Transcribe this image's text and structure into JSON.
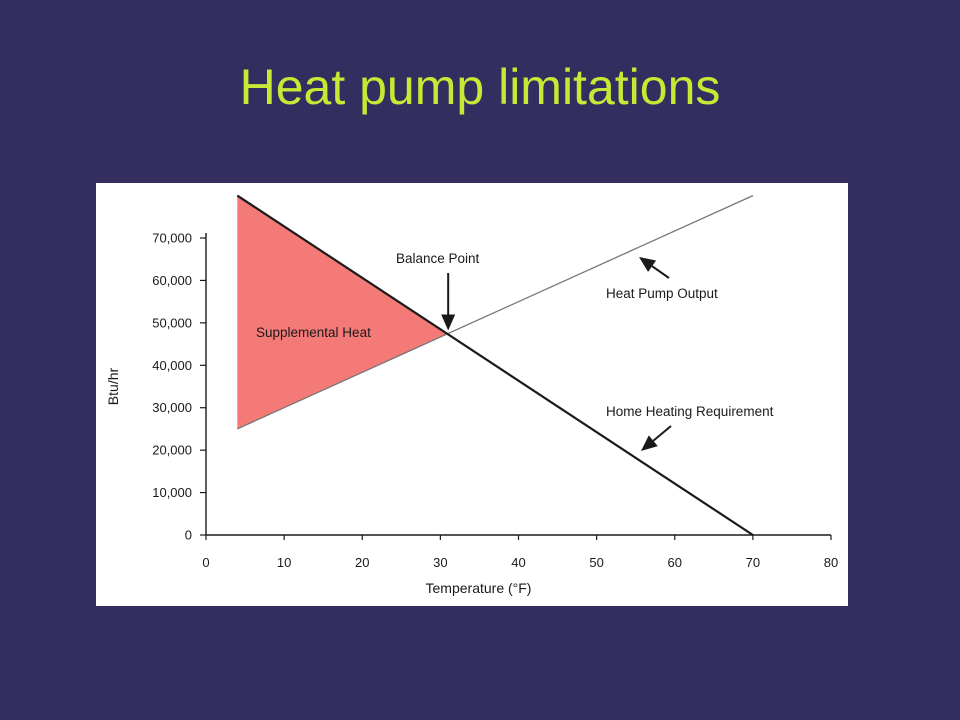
{
  "slide": {
    "title": "Heat pump limitations"
  },
  "colors": {
    "background": "#332e5f",
    "title": "#c7e834",
    "chart_background": "#ffffff",
    "supplemental_fill": "#f47a78",
    "lines": "#1a1a1a"
  },
  "chart_data": {
    "type": "line",
    "title": "",
    "xlabel": "Temperature (°F)",
    "ylabel": "Btu/hr",
    "xlim": [
      0,
      80
    ],
    "ylim": [
      0,
      70000
    ],
    "xticks": [
      0,
      10,
      20,
      30,
      40,
      50,
      60,
      70,
      80
    ],
    "yticks": [
      0,
      10000,
      20000,
      30000,
      40000,
      50000,
      60000,
      70000
    ],
    "xtick_labels": [
      "0",
      "10",
      "20",
      "30",
      "40",
      "50",
      "60",
      "70",
      "80"
    ],
    "ytick_labels": [
      "0",
      "10,000",
      "20,000",
      "30,000",
      "40,000",
      "50,000",
      "60,000",
      "70,000"
    ],
    "grid": false,
    "series": [
      {
        "name": "Heat Pump Output",
        "x": [
          4,
          70
        ],
        "y": [
          25000,
          80000
        ]
      },
      {
        "name": "Home Heating Requirement",
        "x": [
          4,
          70
        ],
        "y": [
          80000,
          0
        ]
      }
    ],
    "balance_point": {
      "x": 31,
      "y": 47500
    },
    "shaded_region": {
      "label": "Supplemental Heat",
      "polygon": [
        [
          4,
          80000
        ],
        [
          31,
          47500
        ],
        [
          4,
          25000
        ]
      ]
    },
    "annotations": [
      {
        "text": "Balance Point",
        "target": "balance_point"
      },
      {
        "text": "Heat Pump Output",
        "target": "Heat Pump Output"
      },
      {
        "text": "Home Heating Requirement",
        "target": "Home Heating Requirement"
      }
    ]
  }
}
